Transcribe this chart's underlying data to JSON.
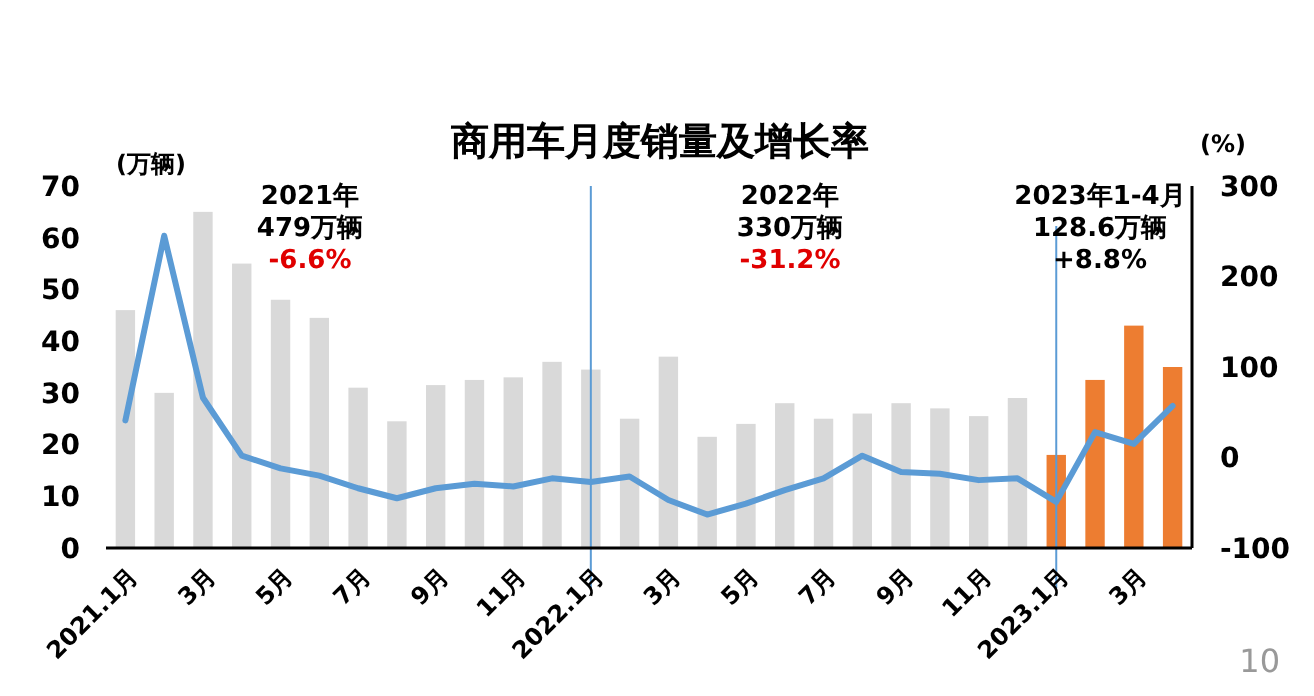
{
  "chart_data": {
    "type": "bar",
    "title": "商用车月度销量及增长率",
    "ylabel": "(万辆)",
    "y2label": "(%)",
    "categories": [
      "2021.1月",
      null,
      "3月",
      null,
      "5月",
      null,
      "7月",
      null,
      "9月",
      null,
      "11月",
      null,
      "2022.1月",
      null,
      "3月",
      null,
      "5月",
      null,
      "7月",
      null,
      "9月",
      null,
      "11月",
      null,
      "2023.1月",
      null,
      "3月",
      null
    ],
    "series": [
      {
        "values": [
          46,
          30,
          65,
          55,
          48,
          44.5,
          31,
          24.5,
          31.5,
          32.5,
          33,
          36,
          34.5,
          25,
          37,
          21.5,
          24,
          28,
          25,
          26,
          28,
          27,
          25.5,
          29,
          18,
          32.5,
          43,
          35
        ],
        "colors": [
          "#d9d9d9",
          "#d9d9d9",
          "#d9d9d9",
          "#d9d9d9",
          "#d9d9d9",
          "#d9d9d9",
          "#d9d9d9",
          "#d9d9d9",
          "#d9d9d9",
          "#d9d9d9",
          "#d9d9d9",
          "#d9d9d9",
          "#d9d9d9",
          "#d9d9d9",
          "#d9d9d9",
          "#d9d9d9",
          "#d9d9d9",
          "#d9d9d9",
          "#d9d9d9",
          "#d9d9d9",
          "#d9d9d9",
          "#d9d9d9",
          "#d9d9d9",
          "#d9d9d9",
          "#ed7d31",
          "#ed7d31",
          "#ed7d31",
          "#ed7d31"
        ]
      },
      {
        "type": "line",
        "axis": "y2",
        "color": "#5b9bd5",
        "values": [
          41,
          245,
          66,
          2,
          -12,
          -20,
          -34,
          -45,
          -34,
          -29,
          -32,
          -23,
          -27,
          -21,
          -47,
          -63,
          -51,
          -36,
          -23,
          2,
          -16,
          -18,
          -25,
          -23,
          -49,
          28,
          15,
          57
        ]
      }
    ],
    "ylim": [
      0,
      70
    ],
    "yticks": [
      0,
      10,
      20,
      30,
      40,
      50,
      60,
      70
    ],
    "y2lim": [
      -100,
      300
    ],
    "y2ticks": [
      -100,
      0,
      100,
      200,
      300
    ],
    "ref_lines": [
      {
        "axis": "x",
        "value": "2022.1月",
        "color": "#5b9bd5"
      },
      {
        "axis": "x",
        "value": "2023.1月",
        "color": "#5b9bd5"
      }
    ],
    "annotations": [
      "2021年",
      "479万辆",
      "-6.6%",
      "2022年",
      "330万辆",
      "-31.2%",
      "2023年1-4月",
      "128.6万辆",
      "+8.8%",
      "10"
    ],
    "grid": false,
    "marker": "none",
    "line_style": "solid"
  }
}
